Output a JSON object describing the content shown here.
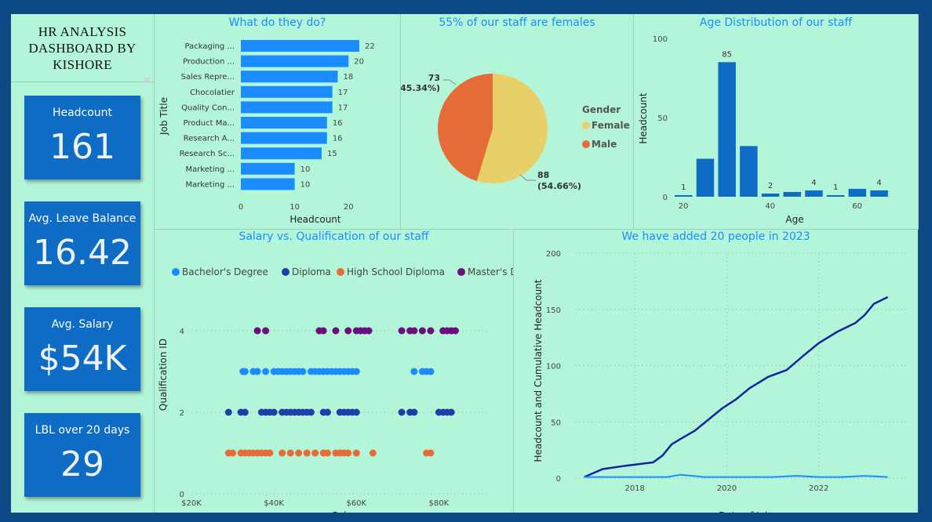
{
  "dashboard": {
    "title_lines": [
      "HR ANALYSIS",
      "DASHBOARD BY",
      "KISHORE"
    ]
  },
  "cards": [
    {
      "label": "Headcount",
      "value": "161"
    },
    {
      "label": "Avg. Leave Balance",
      "value": "16.42"
    },
    {
      "label": "Avg. Salary",
      "value": "$54K"
    },
    {
      "label": "LBL over 20 days",
      "value": "29"
    }
  ],
  "colors": {
    "background": "#0e4a86",
    "panel": "#b3f5d9",
    "card": "#0f6cc4",
    "title_blue": "#1a8cff",
    "bar_light": "#1a8cff",
    "bar_dark": "#0f6cc4",
    "female": "#e8cf68",
    "male": "#e66c37",
    "bachelor": "#1a8cff",
    "diploma": "#1f3ea8",
    "high_school": "#e66c37",
    "masters": "#6b0f7a",
    "cumulative_line": "#13249c",
    "headcount_line": "#1a8cff"
  },
  "chart_data": [
    {
      "id": "jobs",
      "type": "bar",
      "orientation": "horizontal",
      "title": "What do they do?",
      "categories": [
        "Packaging ...",
        "Production ...",
        "Sales Repre...",
        "Chocolatier",
        "Quality Con...",
        "Product Ma...",
        "Research A...",
        "Research Sc...",
        "Marketing ...",
        "Marketing ..."
      ],
      "values": [
        22,
        20,
        18,
        17,
        17,
        16,
        16,
        15,
        10,
        10
      ],
      "xlabel": "Headcount",
      "ylabel": "Job Title",
      "xlim": [
        0,
        22
      ],
      "xticks": [
        "0",
        "10",
        "20"
      ],
      "grid": false
    },
    {
      "id": "gender",
      "type": "pie",
      "title": "55% of our staff are females",
      "legend_title": "Gender",
      "legend_position": "right",
      "slices": [
        {
          "label": "Female",
          "value": 88,
          "pct": "(54.66%)"
        },
        {
          "label": "Male",
          "value": 73,
          "pct": "(45.34%)"
        }
      ]
    },
    {
      "id": "age",
      "type": "bar",
      "title": "Age Distribution of our staff",
      "xlabel": "Age",
      "ylabel": "Headcount",
      "ylim": [
        0,
        100
      ],
      "yticks": [
        "0",
        "50",
        "100"
      ],
      "xticks": [
        "20",
        "40",
        "60"
      ],
      "bins": [
        {
          "x": 20,
          "value": 1,
          "label": "1"
        },
        {
          "x": 25,
          "value": 24,
          "label": ""
        },
        {
          "x": 30,
          "value": 85,
          "label": "85"
        },
        {
          "x": 35,
          "value": 32,
          "label": ""
        },
        {
          "x": 40,
          "value": 2,
          "label": "2"
        },
        {
          "x": 45,
          "value": 3,
          "label": ""
        },
        {
          "x": 50,
          "value": 4,
          "label": "4"
        },
        {
          "x": 55,
          "value": 1,
          "label": "1"
        },
        {
          "x": 60,
          "value": 5,
          "label": ""
        },
        {
          "x": 65,
          "value": 4,
          "label": "4"
        }
      ]
    },
    {
      "id": "salary",
      "type": "scatter",
      "title": "Salary vs. Qualification of our staff",
      "xlabel": "Salary",
      "ylabel": "Qualification ID",
      "xlim": [
        20000,
        90000
      ],
      "ylim": [
        0,
        4.5
      ],
      "xticks": [
        "$20K",
        "$40K",
        "$60K",
        "$80K"
      ],
      "yticks": [
        "0",
        "2",
        "4"
      ],
      "legend_position": "top",
      "series": [
        {
          "name": "Bachelor's Degree",
          "y": 3,
          "x": [
            32500,
            33000,
            35000,
            36000,
            38000,
            40000,
            41000,
            42000,
            43000,
            44000,
            45000,
            46000,
            47000,
            49000,
            50000,
            51000,
            52000,
            53000,
            54000,
            55000,
            56000,
            57000,
            58000,
            59000,
            60000,
            74000,
            76000,
            77000,
            78000
          ]
        },
        {
          "name": "Diploma",
          "y": 2,
          "x": [
            29000,
            32000,
            33000,
            37000,
            38000,
            39000,
            40000,
            42000,
            43000,
            44000,
            45000,
            46000,
            47000,
            48000,
            49000,
            52000,
            53000,
            56000,
            57000,
            58000,
            59000,
            60000,
            71000,
            73000,
            74000,
            80000,
            81000,
            82000,
            83000
          ]
        },
        {
          "name": "High School Diploma",
          "y": 1,
          "x": [
            29000,
            30000,
            32000,
            33000,
            34000,
            35000,
            36000,
            37000,
            38000,
            39000,
            42000,
            44000,
            46000,
            48000,
            50000,
            52000,
            53000,
            55000,
            56000,
            57000,
            58000,
            60000,
            64000,
            77000,
            78000
          ]
        },
        {
          "name": "Master's Degree",
          "y": 4,
          "x": [
            36000,
            38000,
            51000,
            52000,
            55000,
            58000,
            60000,
            61000,
            62000,
            63000,
            71000,
            73000,
            74000,
            76000,
            78000,
            81000,
            82000,
            83000,
            84000
          ]
        }
      ]
    },
    {
      "id": "growth",
      "type": "line",
      "title": "We have added 20 people in 2023",
      "xlabel": "Date of Join",
      "ylabel": "Headcount and Cumulative Headcount",
      "xlim": [
        2016.7,
        2023.9
      ],
      "ylim": [
        0,
        200
      ],
      "xticks": [
        "2018",
        "2020",
        "2022"
      ],
      "yticks": [
        "0",
        "50",
        "100",
        "150",
        "200"
      ],
      "grid": true,
      "series": [
        {
          "kind": "cumulative",
          "x": [
            2016.9,
            2017.3,
            2017.8,
            2018.4,
            2018.6,
            2018.8,
            2019.0,
            2019.3,
            2019.6,
            2019.9,
            2020.2,
            2020.5,
            2020.9,
            2021.3,
            2021.7,
            2022.0,
            2022.4,
            2022.8,
            2023.0,
            2023.2,
            2023.5
          ],
          "y": [
            1,
            8,
            11,
            14,
            20,
            30,
            35,
            42,
            52,
            62,
            70,
            80,
            90,
            96,
            110,
            120,
            130,
            138,
            145,
            155,
            161
          ]
        },
        {
          "kind": "headcount",
          "x": [
            2016.9,
            2017.5,
            2018.0,
            2018.7,
            2019.0,
            2019.5,
            2020.0,
            2020.5,
            2021.0,
            2021.5,
            2022.0,
            2022.5,
            2023.0,
            2023.5
          ],
          "y": [
            1,
            1,
            1,
            1,
            3,
            1,
            1,
            1,
            1,
            2,
            1,
            1,
            2,
            1
          ]
        }
      ]
    }
  ]
}
